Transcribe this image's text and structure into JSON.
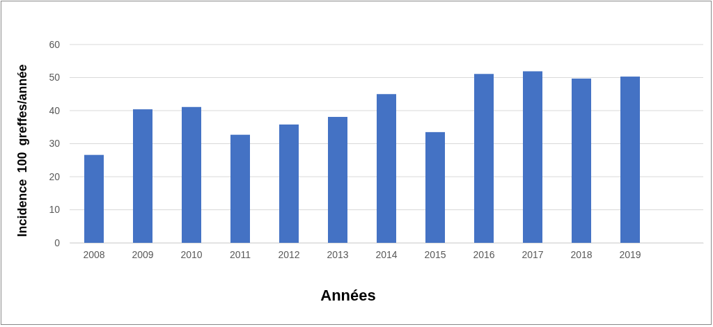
{
  "chart_data": {
    "type": "bar",
    "xlabel": "Années",
    "ylabel": "Incidence 100 greffes/année",
    "categories": [
      "2008",
      "2009",
      "2010",
      "2011",
      "2012",
      "2013",
      "2014",
      "2015",
      "2016",
      "2017",
      "2018",
      "2019",
      null
    ],
    "values": [
      26.6,
      40.4,
      41.1,
      32.7,
      35.8,
      38.1,
      45.0,
      33.5,
      51.1,
      51.9,
      49.7,
      50.3,
      null
    ],
    "color": "#4472c4",
    "ylim": [
      0,
      60
    ],
    "yticks": [
      0,
      10,
      20,
      30,
      40,
      50,
      60
    ],
    "grid": "y"
  }
}
